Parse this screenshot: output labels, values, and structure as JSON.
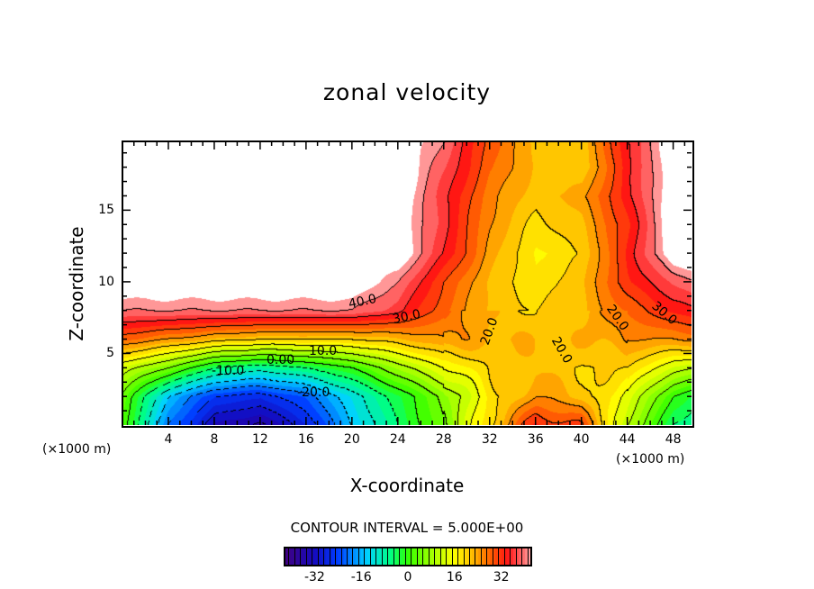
{
  "chart_data": {
    "type": "heatmap",
    "subtype": "filled-contour",
    "title": "zonal velocity",
    "xlabel": "X-coordinate",
    "ylabel": "Z-coordinate",
    "x_unit_label_left": "(×1000 m)",
    "x_unit_label_right": "(×1000 m)",
    "xlim": [
      0,
      49.6
    ],
    "ylim": [
      0,
      19.8
    ],
    "x_ticks": [
      "4",
      "8",
      "12",
      "16",
      "20",
      "24",
      "28",
      "32",
      "36",
      "40",
      "44",
      "48"
    ],
    "y_ticks": [
      "5",
      "10",
      "15"
    ],
    "contour_interval_text": "CONTOUR INTERVAL = 5.000E+00",
    "contour_interval": 5,
    "contour_labels": [
      "40.0",
      "30.0",
      "20.0",
      "20.0",
      "20.0",
      "30.0",
      "10.0",
      "0.00",
      "-10.0",
      "-20.0"
    ],
    "colorbar": {
      "range": [
        -42,
        42
      ],
      "ticks": [
        "-32",
        "-16",
        "0",
        "16",
        "32"
      ],
      "tick_values": [
        -32,
        -16,
        0,
        16,
        32
      ]
    },
    "grid_x": [
      0,
      4,
      8,
      12,
      16,
      20,
      24,
      28,
      32,
      36,
      40,
      44,
      48,
      50
    ],
    "grid_z": [
      0,
      2,
      4,
      6,
      8,
      10,
      12,
      14,
      16,
      18,
      20
    ],
    "values": [
      [
        2,
        -20,
        -33,
        -36,
        -28,
        -15,
        -5,
        5,
        20,
        33,
        30,
        10,
        -5,
        -8
      ],
      [
        4,
        -15,
        -25,
        -27,
        -22,
        -12,
        -3,
        6,
        18,
        25,
        22,
        14,
        0,
        -3
      ],
      [
        12,
        5,
        -5,
        -8,
        -5,
        0,
        8,
        15,
        20,
        22,
        20,
        20,
        12,
        10
      ],
      [
        28,
        25,
        22,
        20,
        20,
        20,
        22,
        25,
        23,
        22,
        22,
        25,
        25,
        26
      ],
      [
        40,
        40,
        40,
        40,
        40,
        40,
        36,
        28,
        22,
        20,
        22,
        28,
        33,
        35
      ],
      [
        45,
        45,
        45,
        45,
        45,
        45,
        40,
        30,
        22,
        18,
        22,
        32,
        38,
        40
      ],
      [
        45,
        45,
        45,
        45,
        45,
        45,
        45,
        35,
        24,
        17,
        20,
        33,
        45,
        45
      ],
      [
        45,
        45,
        45,
        45,
        45,
        45,
        45,
        36,
        25,
        19,
        22,
        32,
        45,
        45
      ],
      [
        45,
        45,
        45,
        45,
        45,
        45,
        45,
        36,
        26,
        21,
        24,
        34,
        45,
        45
      ],
      [
        45,
        45,
        45,
        45,
        45,
        45,
        45,
        38,
        28,
        22,
        20,
        34,
        45,
        45
      ],
      [
        45,
        45,
        45,
        45,
        45,
        45,
        45,
        40,
        29,
        22,
        21,
        35,
        45,
        45
      ]
    ]
  },
  "colors": {
    "frame": "#000000",
    "above_max": "#ffffff"
  }
}
